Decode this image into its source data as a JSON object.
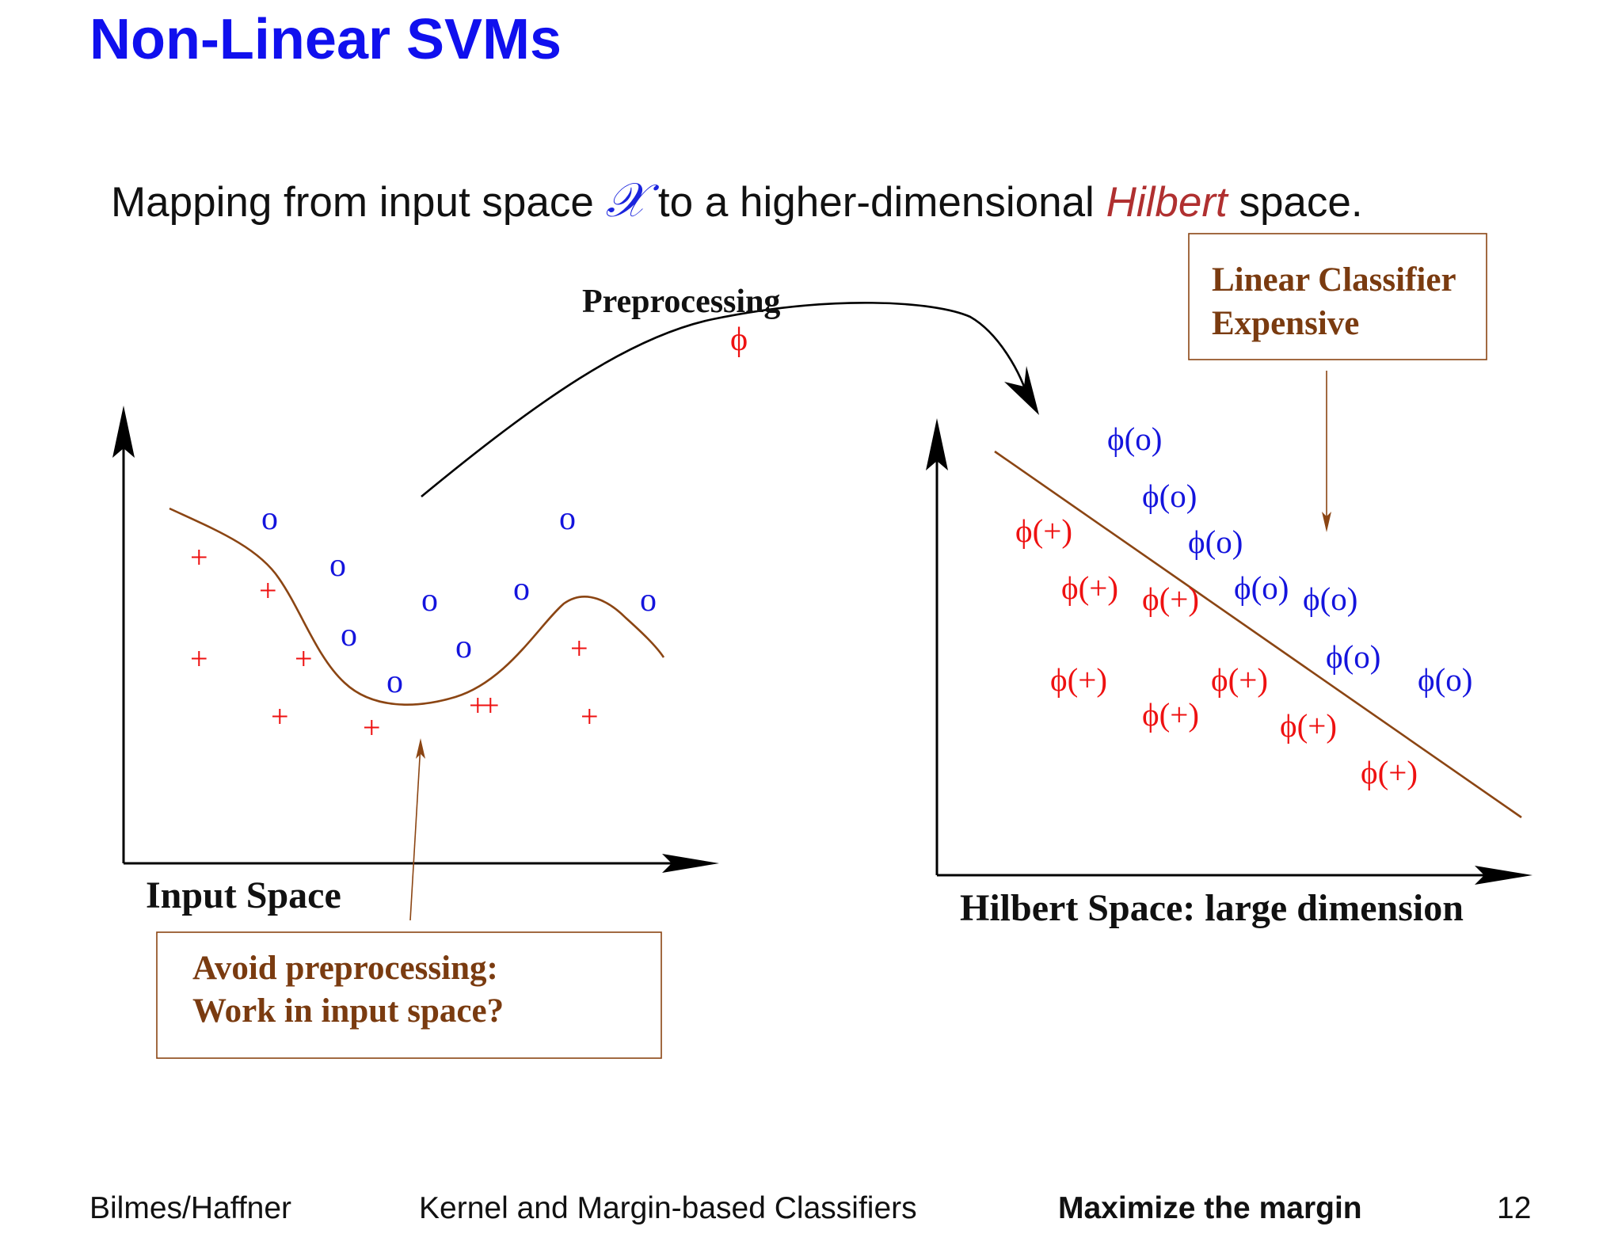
{
  "slide": {
    "title": "Non-Linear SVMs",
    "subtitle": {
      "prefix": "Mapping from input space ",
      "symbol": "𝒳",
      "middle": " to a higher-dimensional ",
      "emphasis": "Hilbert",
      "suffix": " space."
    }
  },
  "diagram": {
    "arrow_label": "Preprocessing",
    "arrow_symbol": "ϕ",
    "input_space_label": "Input Space",
    "hilbert_space_label": "Hilbert Space: large dimension",
    "note_input": {
      "line1": "Avoid preprocessing:",
      "line2": "Work in input space?"
    },
    "note_hilbert": {
      "line1": "Linear Classifier",
      "line2": "Expensive"
    },
    "marks": {
      "plus": "+",
      "circle": "o",
      "phi_plus": "ϕ(+)",
      "phi_circle": "ϕ(o)"
    },
    "colors": {
      "positive": "#ee1111",
      "negative": "#1414dd",
      "boundary": "#8b4513",
      "note_text": "#7a3b10",
      "title": "#1010ee"
    }
  },
  "footer": {
    "authors": "Bilmes/Haffner",
    "course": "Kernel and Margin-based Classifiers",
    "topic": "Maximize the margin",
    "page": "12"
  }
}
